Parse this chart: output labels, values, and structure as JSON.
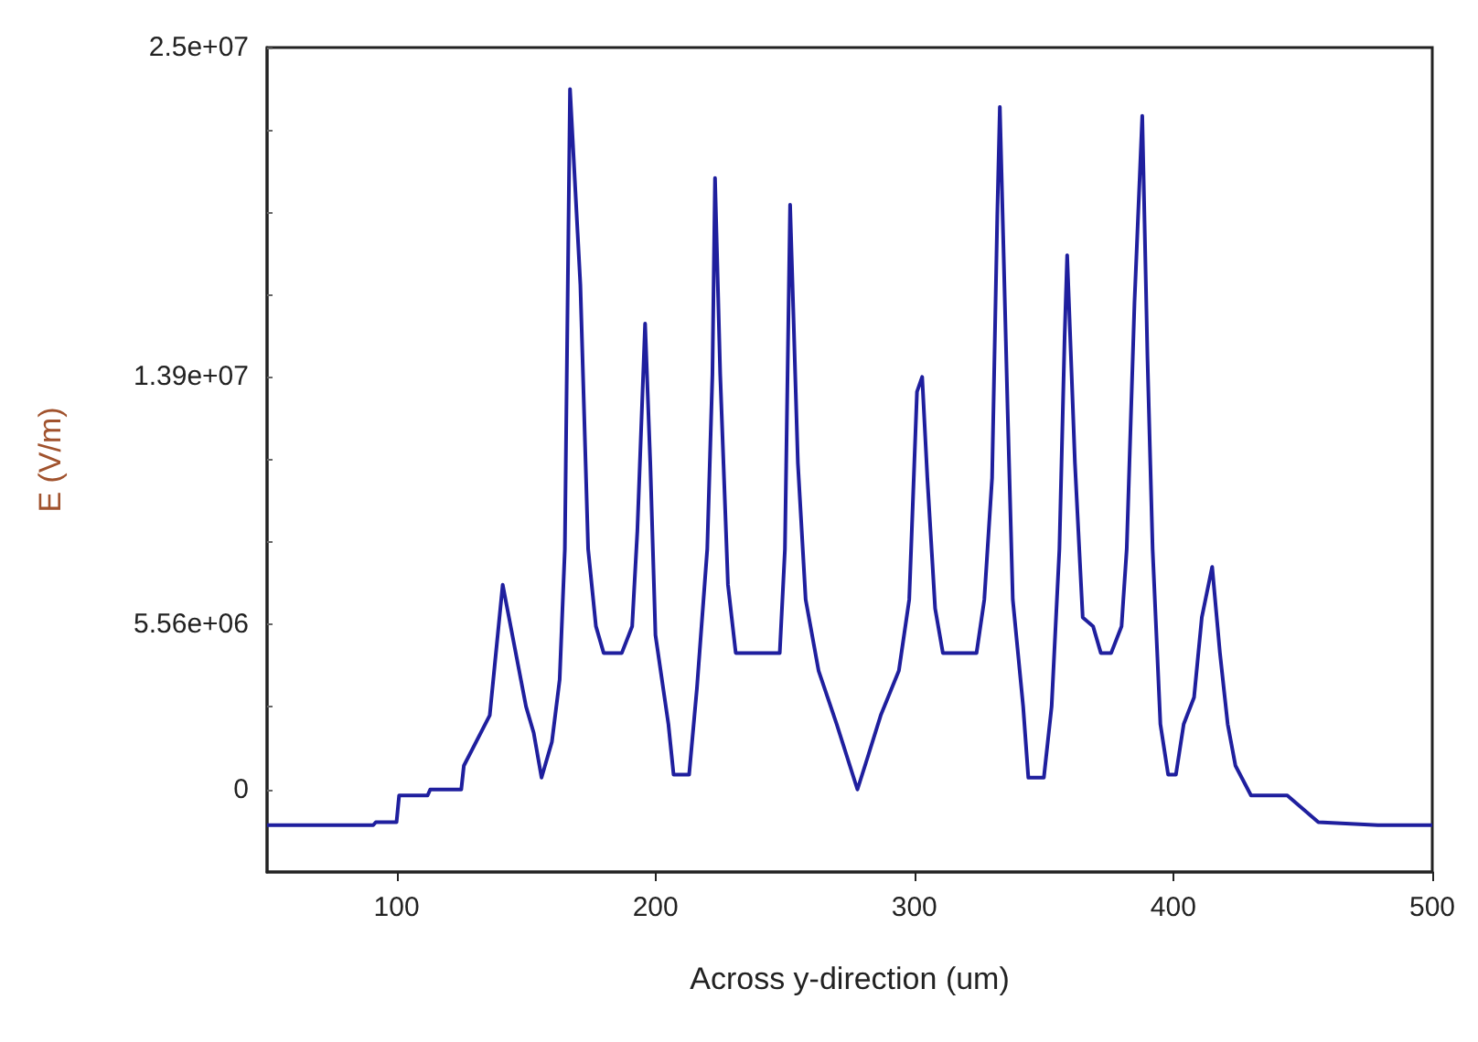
{
  "chart_data": {
    "type": "line",
    "xlabel": "Across y-direction (um)",
    "ylabel": "E (V/m)",
    "series": [
      {
        "color": "#1f1f9e",
        "x": [
          50,
          91,
          92,
          100,
          101,
          112,
          113,
          125,
          126,
          136,
          141,
          150,
          153,
          156,
          160,
          163,
          165,
          167,
          171,
          174,
          177,
          180,
          187,
          191,
          193,
          196,
          198,
          200,
          205,
          207,
          213,
          216,
          220,
          222,
          223,
          225,
          228,
          231,
          248,
          250,
          252,
          255,
          258,
          263,
          270,
          278,
          282,
          287,
          294,
          298,
          301,
          303,
          305,
          308,
          311,
          324,
          327,
          330,
          332,
          333,
          336,
          338,
          342,
          344,
          350,
          353,
          356,
          358,
          359,
          362,
          365,
          369,
          372,
          376,
          380,
          382,
          385,
          388,
          390,
          392,
          395,
          398,
          401,
          404,
          408,
          411,
          415,
          418,
          421,
          424,
          430,
          444,
          456,
          479,
          500
        ],
        "values": [
          -1200000,
          -1200000,
          -1100000,
          -1100000,
          -200000,
          -200000,
          0,
          0,
          800000,
          2500000,
          6900000,
          2800000,
          1900000,
          400000,
          1600000,
          3700000,
          8100000,
          23600000,
          17000000,
          8100000,
          5500000,
          4600000,
          4600000,
          5500000,
          8700000,
          15700000,
          11000000,
          5200000,
          2200000,
          500000,
          500000,
          3400000,
          8100000,
          14000000,
          20600000,
          14000000,
          6900000,
          4600000,
          4600000,
          8100000,
          19700000,
          11000000,
          6400000,
          4000000,
          2200000,
          0,
          1100000,
          2500000,
          4000000,
          6400000,
          13400000,
          13900000,
          10500000,
          6100000,
          4600000,
          4600000,
          6400000,
          10500000,
          19300000,
          23000000,
          12800000,
          6400000,
          2800000,
          400000,
          400000,
          2800000,
          8100000,
          15200000,
          18000000,
          11000000,
          5800000,
          5500000,
          4600000,
          4600000,
          5500000,
          8100000,
          16400000,
          22700000,
          14600000,
          8100000,
          2200000,
          500000,
          500000,
          2200000,
          3100000,
          5800000,
          7500000,
          4600000,
          2200000,
          800000,
          -200000,
          -200000,
          -1100000,
          -1200000,
          -1200000
        ]
      }
    ],
    "xlim": [
      50,
      500
    ],
    "xticks": [
      100,
      200,
      300,
      400,
      500
    ],
    "ylim": [
      -2780000,
      25000000
    ],
    "yticks": [
      {
        "value": 0,
        "label": "0"
      },
      {
        "value": 2780000,
        "label": null
      },
      {
        "value": 5560000,
        "label": "5.56e+06"
      },
      {
        "value": 8340000,
        "label": null
      },
      {
        "value": 11120000,
        "label": null
      },
      {
        "value": 13900000,
        "label": "1.39e+07"
      },
      {
        "value": 16680000,
        "label": null
      },
      {
        "value": 19460000,
        "label": null
      },
      {
        "value": 22240000,
        "label": null
      },
      {
        "value": 25000000,
        "label": "2.5e+07"
      }
    ],
    "marker": "none",
    "line_style": "solid"
  }
}
